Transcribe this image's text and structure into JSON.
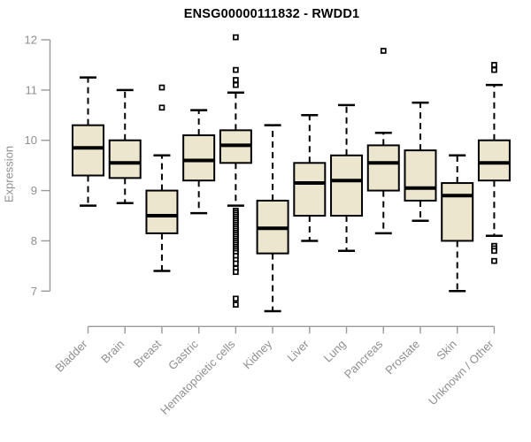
{
  "figure": {
    "title": "ENSG00000111832 - RWDD1",
    "background": "#ffffff"
  },
  "chart_data": {
    "type": "boxplot",
    "title": "ENSG00000111832 - RWDD1",
    "xlabel": "",
    "ylabel": "Expression",
    "ylim": [
      7,
      12
    ],
    "yticks": [
      7,
      8,
      9,
      10,
      11,
      12
    ],
    "grid": false,
    "legend": false,
    "categories": [
      "Bladder",
      "Brain",
      "Breast",
      "Gastric",
      "Hematopoietic cells",
      "Kidney",
      "Liver",
      "Lung",
      "Pancreas",
      "Prostate",
      "Skin",
      "Unknown / Other"
    ],
    "series": [
      {
        "category": "Bladder",
        "whisker_low": 8.7,
        "q1": 9.3,
        "median": 9.85,
        "q3": 10.3,
        "whisker_high": 11.25,
        "outliers": []
      },
      {
        "category": "Brain",
        "whisker_low": 8.75,
        "q1": 9.25,
        "median": 9.55,
        "q3": 10.0,
        "whisker_high": 11.0,
        "outliers": []
      },
      {
        "category": "Breast",
        "whisker_low": 7.4,
        "q1": 8.15,
        "median": 8.5,
        "q3": 9.0,
        "whisker_high": 9.7,
        "outliers": [
          11.05,
          10.65
        ]
      },
      {
        "category": "Gastric",
        "whisker_low": 8.55,
        "q1": 9.2,
        "median": 9.6,
        "q3": 10.1,
        "whisker_high": 10.6,
        "outliers": []
      },
      {
        "category": "Hematopoietic cells",
        "whisker_low": 8.7,
        "q1": 9.55,
        "median": 9.9,
        "q3": 10.2,
        "whisker_high": 10.95,
        "outliers": [
          12.05,
          11.4,
          11.2,
          11.1,
          8.6,
          8.56,
          8.52,
          8.48,
          8.44,
          8.4,
          8.36,
          8.32,
          8.28,
          8.24,
          8.2,
          8.16,
          8.12,
          8.08,
          8.04,
          8.0,
          7.96,
          7.92,
          7.88,
          7.84,
          7.8,
          7.76,
          7.7,
          7.62,
          7.55,
          7.45,
          7.38,
          6.85,
          6.73
        ]
      },
      {
        "category": "Kidney",
        "whisker_low": 6.6,
        "q1": 7.75,
        "median": 8.25,
        "q3": 8.8,
        "whisker_high": 10.3,
        "outliers": []
      },
      {
        "category": "Liver",
        "whisker_low": 8.0,
        "q1": 8.5,
        "median": 9.15,
        "q3": 9.55,
        "whisker_high": 10.5,
        "outliers": []
      },
      {
        "category": "Lung",
        "whisker_low": 7.8,
        "q1": 8.5,
        "median": 9.2,
        "q3": 9.7,
        "whisker_high": 10.7,
        "outliers": []
      },
      {
        "category": "Pancreas",
        "whisker_low": 8.15,
        "q1": 9.0,
        "median": 9.55,
        "q3": 9.9,
        "whisker_high": 10.15,
        "outliers": [
          11.78
        ]
      },
      {
        "category": "Prostate",
        "whisker_low": 8.4,
        "q1": 8.8,
        "median": 9.05,
        "q3": 9.8,
        "whisker_high": 10.75,
        "outliers": []
      },
      {
        "category": "Skin",
        "whisker_low": 7.0,
        "q1": 8.0,
        "median": 8.9,
        "q3": 9.15,
        "whisker_high": 9.7,
        "outliers": []
      },
      {
        "category": "Unknown / Other",
        "whisker_low": 8.1,
        "q1": 9.2,
        "median": 9.55,
        "q3": 10.0,
        "whisker_high": 11.1,
        "outliers": [
          11.5,
          11.4,
          7.9,
          7.85,
          7.8,
          7.6
        ]
      }
    ],
    "colors": {
      "box_fill": "#EBE6CD",
      "box_stroke": "#000000",
      "median": "#000000",
      "whisker": "#000000",
      "outlier_fill": "#ffffff",
      "outlier_stroke": "#000000",
      "axis_line": "#9a9a9a",
      "tick_text": "#8f8f8f",
      "title_text": "#000000",
      "background": "#ffffff"
    }
  }
}
